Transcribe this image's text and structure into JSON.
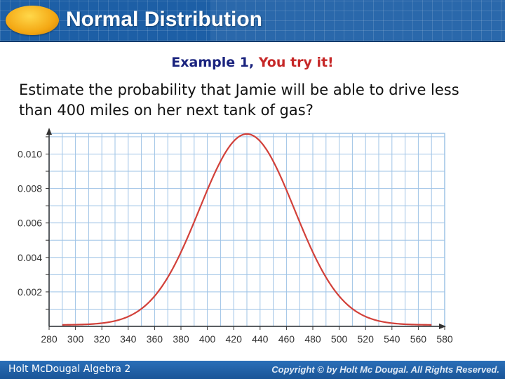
{
  "header": {
    "title": "Normal Distribution"
  },
  "example": {
    "label": "Example 1,",
    "highlight": "You try it!"
  },
  "question": "Estimate the probability that Jamie will be able to drive less than 400 miles on her next tank of gas?",
  "footer": {
    "left": "Holt McDougal Algebra 2",
    "right": "Copyright © by Holt Mc Dougal. All Rights Reserved."
  },
  "colors": {
    "header_bg": "#1d5fa6",
    "curve": "#d2413a",
    "grid": "#9ec3e6",
    "logo": "#f4a814"
  },
  "chart_data": {
    "type": "line",
    "title": "",
    "xlabel": "",
    "ylabel": "",
    "xlim": [
      280,
      580
    ],
    "ylim": [
      0,
      0.0112
    ],
    "grid": true,
    "x_ticks": [
      280,
      300,
      320,
      340,
      360,
      380,
      400,
      420,
      440,
      460,
      480,
      500,
      520,
      540,
      560,
      580
    ],
    "x_tick_labels": [
      "280",
      "300",
      "320",
      "340",
      "360",
      "380",
      "400",
      "420",
      "440",
      "460",
      "480",
      "500",
      "520",
      "540",
      "560",
      "580"
    ],
    "y_ticks": [
      0.002,
      0.004,
      0.006,
      0.008,
      0.01
    ],
    "y_tick_labels": [
      "0.002",
      "0.004",
      "0.006",
      "0.008",
      "0.010"
    ],
    "series": [
      {
        "distribution": "normal",
        "mean": 430,
        "sd": 36,
        "x_range": [
          290,
          570
        ]
      }
    ]
  }
}
